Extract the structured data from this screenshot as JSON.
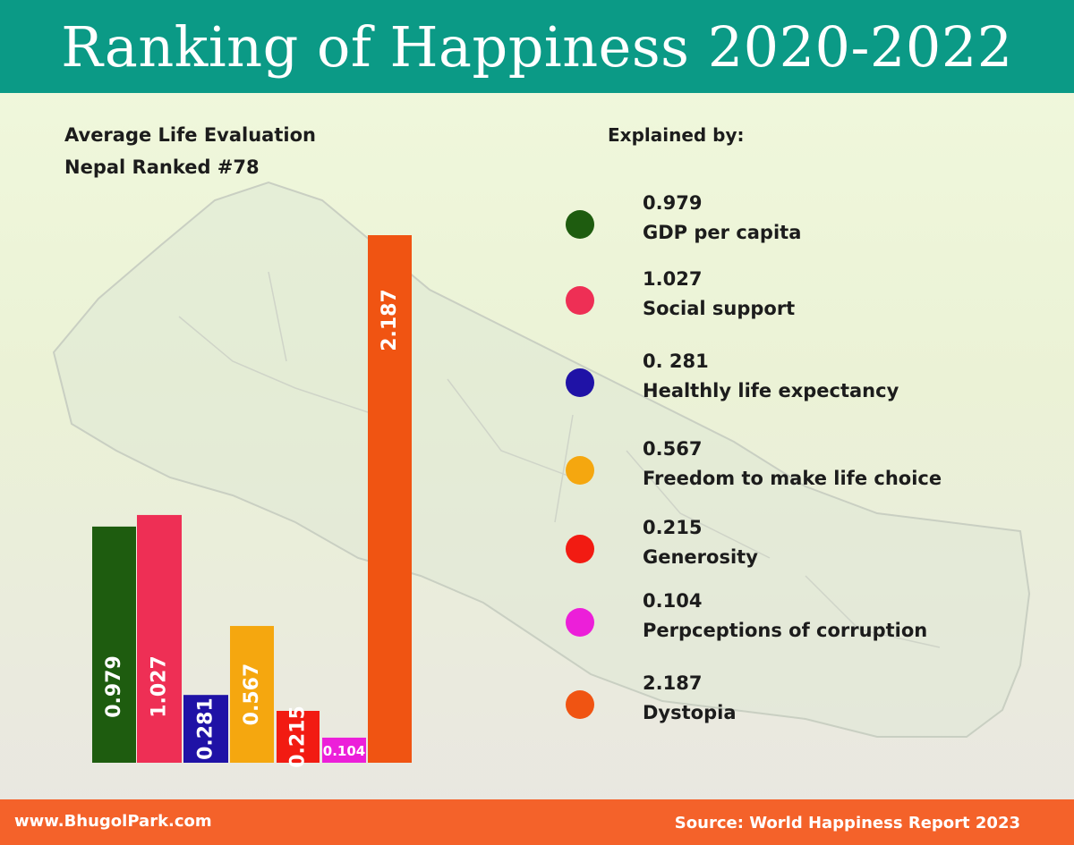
{
  "header": {
    "title": "Ranking of Happiness 2020-2022"
  },
  "left_panel": {
    "subtitle_line1": "Average Life Evaluation",
    "subtitle_line2": "Nepal Ranked #78"
  },
  "legend": {
    "heading": "Explained by:",
    "items": [
      {
        "value": "0.979",
        "name": "GDP per capita",
        "color": "#1e5c0f"
      },
      {
        "value": "1.027",
        "name": "Social support",
        "color": "#ee2f55"
      },
      {
        "value": "0. 281",
        "name": "Healthly life expectancy",
        "color": "#1f12a6"
      },
      {
        "value": "0.567",
        "name": "Freedom to make life choice",
        "color": "#f5a70f"
      },
      {
        "value": "0.215",
        "name": "Generosity",
        "color": "#f21b12"
      },
      {
        "value": "0.104",
        "name": "Perpceptions of corruption",
        "color": "#ec1fd9"
      },
      {
        "value": "2.187",
        "name": "Dystopia",
        "color": "#f05412"
      }
    ]
  },
  "chart_data": {
    "type": "bar",
    "categories": [
      "GDP per capita",
      "Social support",
      "Healthly life expectancy",
      "Freedom to make life choice",
      "Generosity",
      "Perpceptions of corruption",
      "Dystopia"
    ],
    "values": [
      0.979,
      1.027,
      0.281,
      0.567,
      0.215,
      0.104,
      2.187
    ],
    "labels": [
      "0.979",
      "1.027",
      "0.281",
      "0.567",
      "0.215",
      "0.104",
      "2.187"
    ],
    "colors": [
      "#1e5c0f",
      "#ee2f55",
      "#1f12a6",
      "#f5a70f",
      "#f21b12",
      "#ec1fd9",
      "#f05412"
    ],
    "title": "",
    "xlabel": "",
    "ylabel": "",
    "ylim": [
      0,
      2.187
    ],
    "grid": false,
    "legend_placement": "right"
  },
  "footer": {
    "website": "www.BhugolPark.com",
    "source_label": "Source:",
    "source_text": "World Happiness Report 2023"
  }
}
